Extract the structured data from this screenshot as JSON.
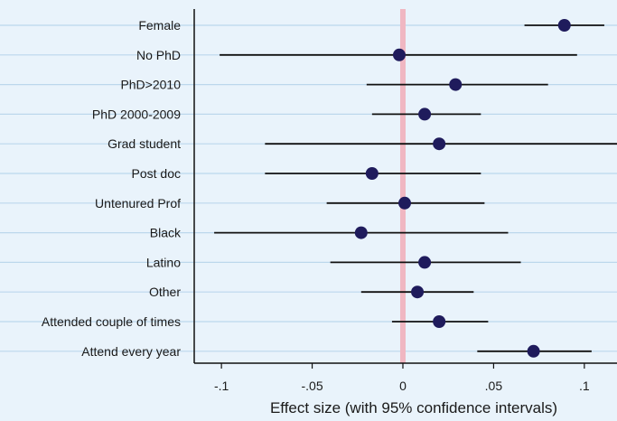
{
  "chart_data": {
    "type": "scatter",
    "subtype": "coefficient-plot",
    "title": "",
    "xlabel": "Effect size (with 95% confidence intervals)",
    "ylabel": "",
    "xlim": [
      -0.115,
      0.118
    ],
    "x_ticks": [
      -0.1,
      -0.05,
      0,
      0.05,
      0.1
    ],
    "x_tick_labels": [
      "-.1",
      "-.05",
      "0",
      ".05",
      ".1"
    ],
    "reference_line": 0,
    "grid": "horizontal",
    "legend": "none",
    "categories": [
      "Female",
      "No PhD",
      "PhD>2010",
      "PhD 2000-2009",
      "Grad student",
      "Post doc",
      "Untenured Prof",
      "Black",
      "Latino",
      "Other",
      "Attended couple of times",
      "Attend every year"
    ],
    "series": [
      {
        "estimates": [
          0.089,
          -0.002,
          0.029,
          0.012,
          0.02,
          -0.017,
          0.001,
          -0.023,
          0.012,
          0.008,
          0.02,
          0.072
        ],
        "ci_low": [
          0.067,
          -0.101,
          -0.02,
          -0.017,
          -0.076,
          -0.076,
          -0.042,
          -0.104,
          -0.04,
          -0.023,
          -0.006,
          0.041
        ],
        "ci_high": [
          0.111,
          0.096,
          0.08,
          0.043,
          0.119,
          0.043,
          0.045,
          0.058,
          0.065,
          0.039,
          0.047,
          0.104
        ]
      }
    ],
    "colors": {
      "background": "#e9f3fb",
      "gridline": "#bcd7ec",
      "point": "#1f1b5c",
      "ci_line": "#111111",
      "reference_line": "#f0b7c2",
      "axis": "#111111",
      "text": "#1a1a1a"
    }
  }
}
